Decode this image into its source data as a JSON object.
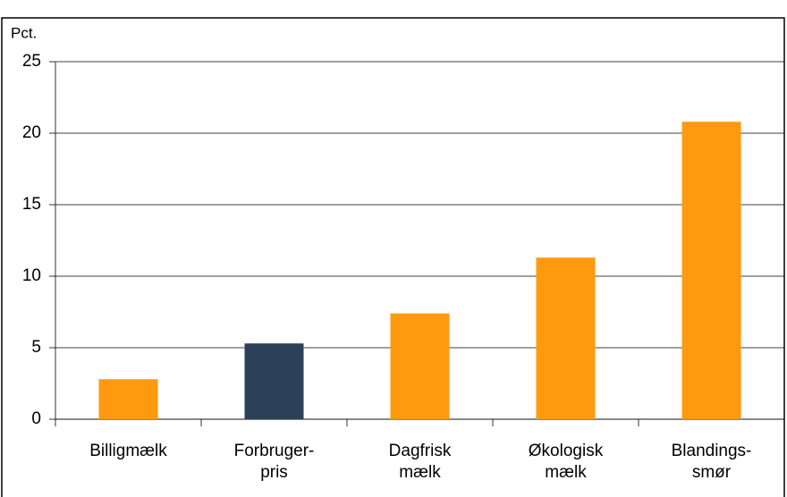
{
  "chart_data": {
    "type": "bar",
    "ylabel": "Pct.",
    "categories": [
      "Billigmælk",
      "Forbruger-\npris",
      "Dagfrisk\nmælk",
      "Økologisk\nmælk",
      "Blandings-\nsmør"
    ],
    "values": [
      2.8,
      5.3,
      7.4,
      11.3,
      20.8
    ],
    "colors": [
      "#ff9a0f",
      "#2c4158",
      "#ff9a0f",
      "#ff9a0f",
      "#ff9a0f"
    ],
    "ylim": [
      0,
      25
    ],
    "yticks": [
      0,
      5,
      10,
      15,
      20,
      25
    ],
    "grid": true
  }
}
